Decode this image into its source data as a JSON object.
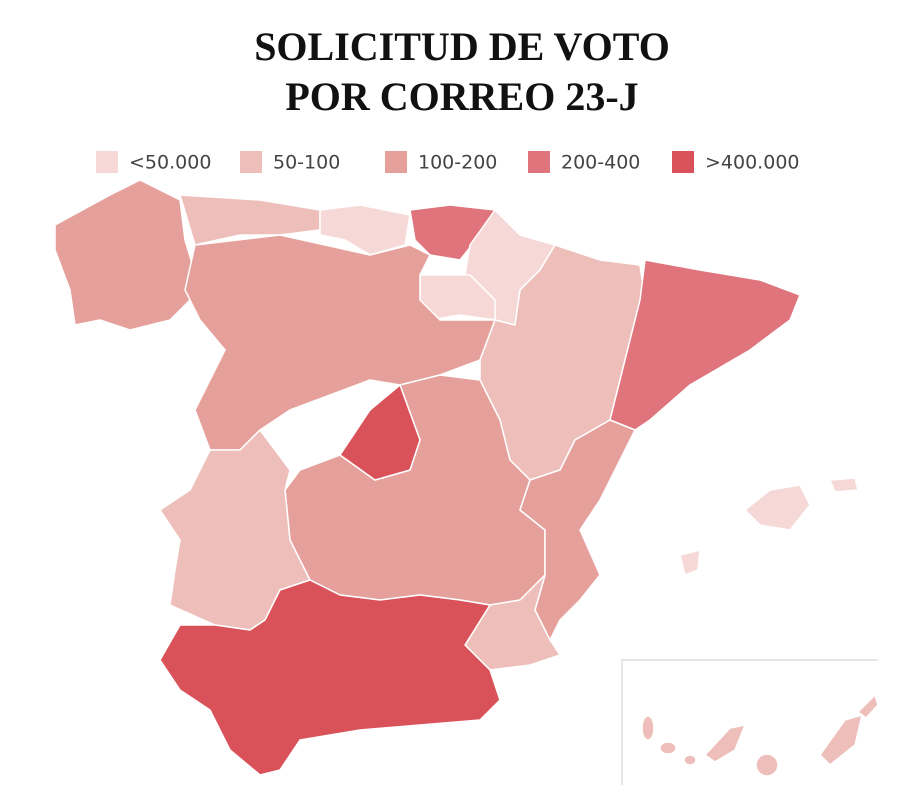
{
  "title": [
    "SOLICITUD DE VOTO",
    "POR CORREO 23-J"
  ],
  "legend": [
    {
      "label": "<50.000",
      "color": "#f6d9d6"
    },
    {
      "label": "50-100",
      "color": "#eebfba"
    },
    {
      "label": "100-200",
      "color": "#e5a09b"
    },
    {
      "label": "200-400",
      "color": "#df747c"
    },
    {
      "label": ">400.000",
      "color": "#d9525a"
    }
  ]
}
